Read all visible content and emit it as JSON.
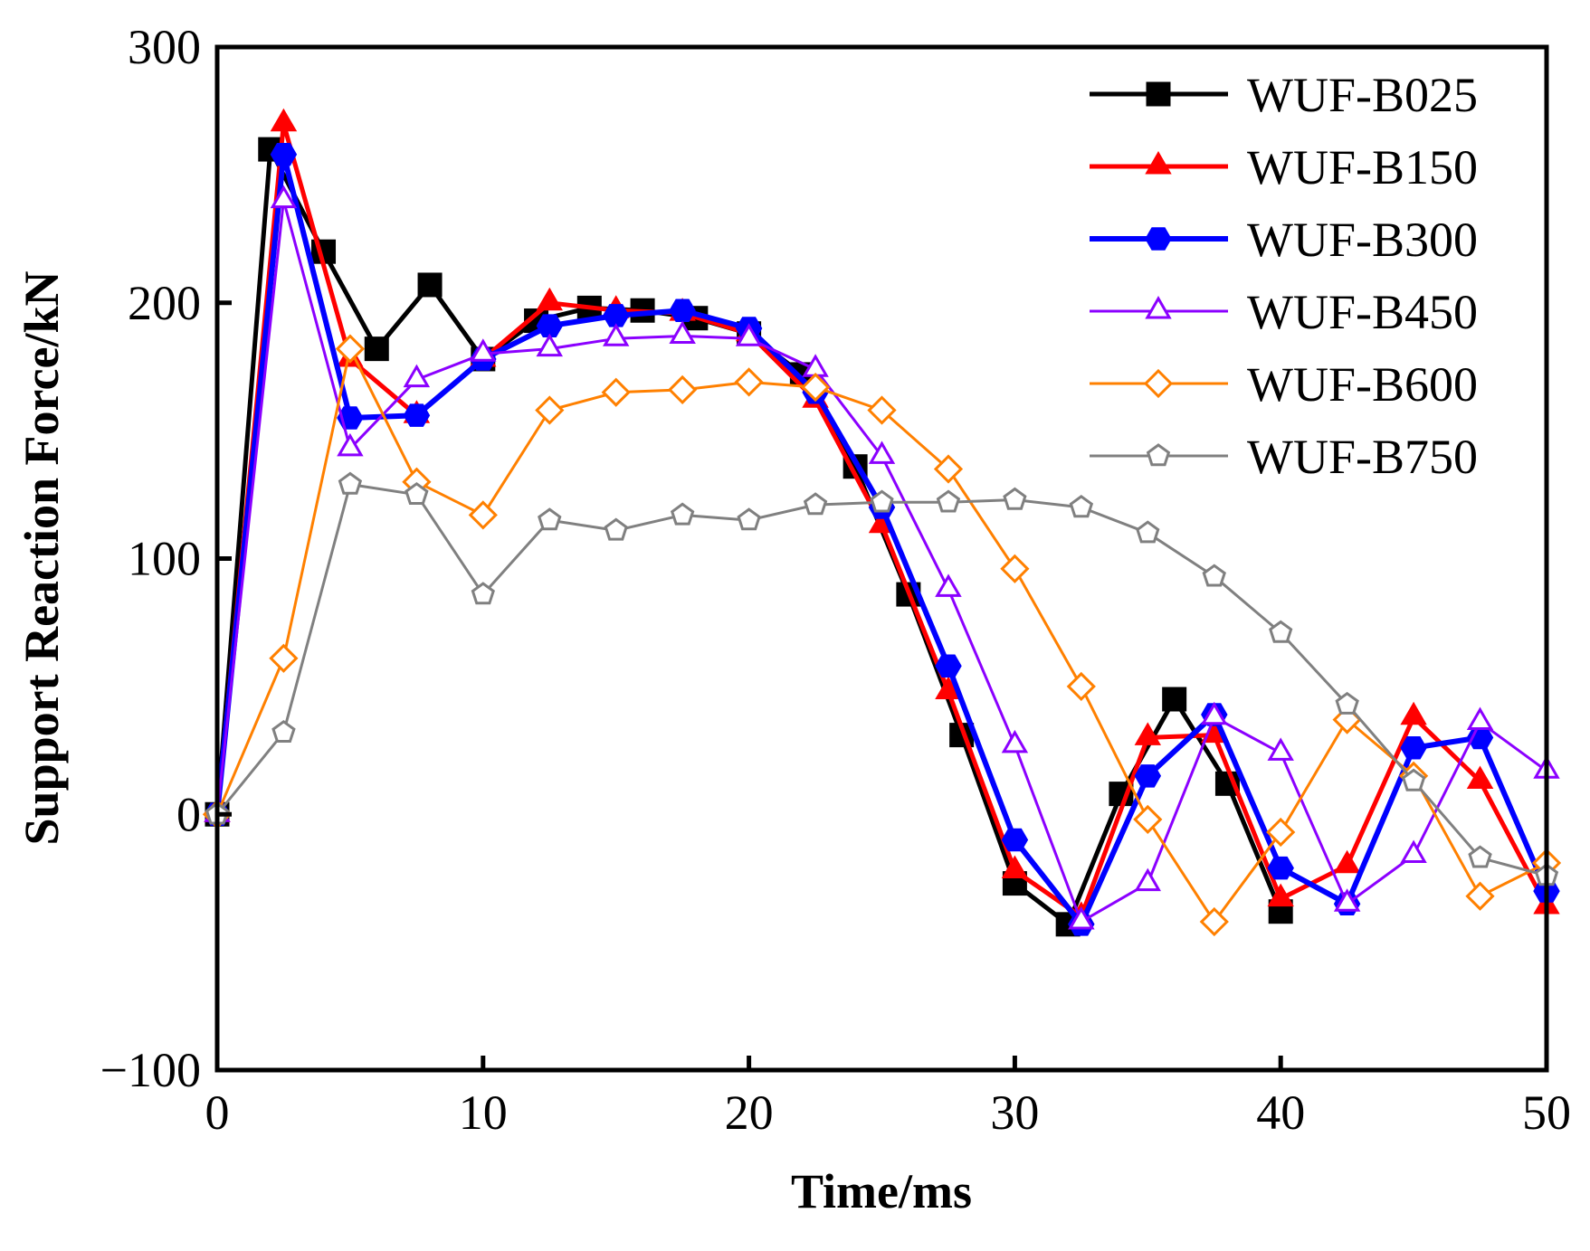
{
  "chart_data": {
    "type": "line",
    "title": "",
    "xlabel": "Time/ms",
    "ylabel": "Support Reaction Force/kN",
    "xlim": [
      0,
      50
    ],
    "ylim": [
      -100,
      300
    ],
    "xticks": [
      0,
      10,
      20,
      30,
      40,
      50
    ],
    "yticks": [
      -100,
      0,
      100,
      200,
      300
    ],
    "ytick_labels": [
      "−100",
      "0",
      "100",
      "200",
      "300"
    ],
    "xtick_labels": [
      "0",
      "10",
      "20",
      "30",
      "40",
      "50"
    ],
    "grid": false,
    "legend_position": "top-right",
    "series": [
      {
        "name": "WUF-B025",
        "color": "#000000",
        "marker": "square",
        "filled": true,
        "x": [
          0,
          2,
          4,
          6,
          8,
          10,
          12,
          14,
          16,
          18,
          20,
          22,
          24,
          26,
          28,
          30,
          32,
          34,
          36,
          38,
          40
        ],
        "y": [
          0,
          260,
          220,
          182,
          207,
          178,
          193,
          198,
          197,
          194,
          188,
          172,
          136,
          86,
          31,
          -27,
          -43,
          8,
          45,
          12,
          -38
        ]
      },
      {
        "name": "WUF-B150",
        "color": "#ff0000",
        "marker": "triangle",
        "filled": true,
        "x": [
          0,
          2.5,
          5,
          7.5,
          10,
          12.5,
          15,
          17.5,
          20,
          22.5,
          25,
          27.5,
          30,
          32.5,
          35,
          37.5,
          40,
          42.5,
          45,
          47.5,
          50
        ],
        "y": [
          0,
          270,
          178,
          156,
          178,
          200,
          197,
          196,
          188,
          162,
          113,
          48,
          -22,
          -40,
          30,
          31,
          -33,
          -20,
          38,
          13,
          -36
        ]
      },
      {
        "name": "WUF-B300",
        "color": "#0000ff",
        "marker": "hexagon",
        "filled": true,
        "x": [
          0,
          2.5,
          5,
          7.5,
          10,
          12.5,
          15,
          17.5,
          20,
          22.5,
          25,
          27.5,
          30,
          32.5,
          35,
          37.5,
          40,
          42.5,
          45,
          47.5,
          50
        ],
        "y": [
          0,
          258,
          155,
          156,
          178,
          191,
          195,
          197,
          190,
          165,
          120,
          58,
          -10,
          -43,
          15,
          39,
          -21,
          -35,
          26,
          30,
          -30
        ]
      },
      {
        "name": "WUF-B450",
        "color": "#8b00ff",
        "marker": "triangle",
        "filled": false,
        "x": [
          0,
          2.5,
          5,
          7.5,
          10,
          12.5,
          15,
          17.5,
          20,
          22.5,
          25,
          27.5,
          30,
          32.5,
          35,
          37.5,
          40,
          42.5,
          45,
          47.5,
          50
        ],
        "y": [
          0,
          240,
          143,
          170,
          180,
          182,
          186,
          187,
          186,
          174,
          140,
          88,
          27,
          -42,
          -27,
          38,
          24,
          -35,
          -16,
          36,
          17
        ]
      },
      {
        "name": "WUF-B600",
        "color": "#ff8000",
        "marker": "diamond",
        "filled": false,
        "x": [
          0,
          2.5,
          5,
          7.5,
          10,
          12.5,
          15,
          17.5,
          20,
          22.5,
          25,
          27.5,
          30,
          32.5,
          35,
          37.5,
          40,
          42.5,
          45,
          47.5,
          50
        ],
        "y": [
          0,
          61,
          182,
          130,
          117,
          158,
          165,
          166,
          169,
          167,
          158,
          135,
          96,
          50,
          -2,
          -42,
          -7,
          37,
          15,
          -32,
          -19
        ]
      },
      {
        "name": "WUF-B750",
        "color": "#808080",
        "marker": "pentagon",
        "filled": false,
        "x": [
          0,
          2.5,
          5,
          7.5,
          10,
          12.5,
          15,
          17.5,
          20,
          22.5,
          25,
          27.5,
          30,
          32.5,
          35,
          37.5,
          40,
          42.5,
          45,
          47.5,
          50
        ],
        "y": [
          0,
          32,
          129,
          125,
          86,
          115,
          111,
          117,
          115,
          121,
          122,
          122,
          123,
          120,
          110,
          93,
          71,
          43,
          13,
          -17,
          -24
        ]
      }
    ]
  }
}
